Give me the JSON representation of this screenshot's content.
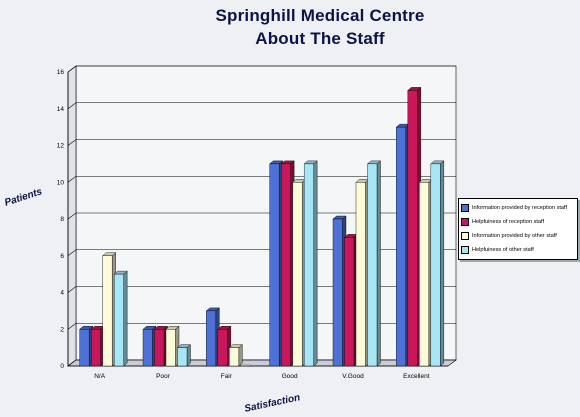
{
  "title": "Springhill Medical Centre",
  "subtitle": "About The Staff",
  "chart_data": {
    "type": "bar",
    "xlabel": "Satisfaction",
    "ylabel": "Patients",
    "ylim": [
      0,
      16
    ],
    "ytick_step": 2,
    "yticks": [
      "0",
      "2",
      "4",
      "6",
      "8",
      "10",
      "12",
      "14",
      "16"
    ],
    "grid": true,
    "legend_position": "right",
    "categories": [
      "N/A",
      "Poor",
      "Fair",
      "Good",
      "V.Good",
      "Excellent"
    ],
    "series": [
      {
        "name": "Information provided by reception staff",
        "color": "#4d71d6",
        "values": [
          2,
          2,
          3,
          11,
          8,
          13
        ]
      },
      {
        "name": "Helpfuiness of reception staff",
        "color": "#c8175a",
        "values": [
          2,
          2,
          2,
          11,
          7,
          15
        ]
      },
      {
        "name": "Information provided by other staff",
        "color": "#fdfbd8",
        "values": [
          6,
          2,
          1,
          10,
          10,
          10
        ]
      },
      {
        "name": "Helpfuiness of other staff",
        "color": "#a7e6f6",
        "values": [
          5,
          1,
          0,
          11,
          11,
          11
        ]
      }
    ]
  }
}
